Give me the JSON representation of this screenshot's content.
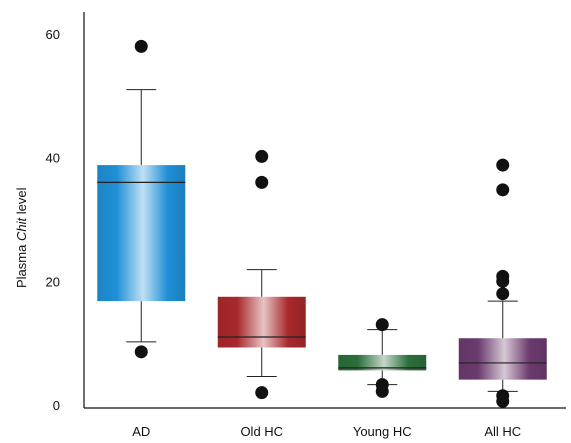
{
  "chart_data": {
    "type": "box",
    "ylabel": {
      "prefix": "Plasma",
      "italic": "Chit",
      "suffix": "level"
    },
    "ylim": [
      0,
      60
    ],
    "yticks": [
      0,
      20,
      40,
      60
    ],
    "grid": false,
    "categories": [
      "AD",
      "Old HC",
      "Young HC",
      "All HC"
    ],
    "series": [
      {
        "category": "AD",
        "color": "#1f8fd6",
        "whisker_low": 10.2,
        "q1": 16.8,
        "median": 36.0,
        "q3": 38.8,
        "whisker_high": 51.0,
        "outliers": [
          8.6,
          58.0
        ]
      },
      {
        "category": "Old HC",
        "color": "#a8282c",
        "whisker_low": 4.6,
        "q1": 9.3,
        "median": 11.0,
        "q3": 17.5,
        "whisker_high": 21.9,
        "outliers": [
          2.0,
          36.0,
          40.2
        ]
      },
      {
        "category": "Young HC",
        "color": "#2c6e3a",
        "whisker_low": 3.3,
        "q1": 5.6,
        "median": 6.0,
        "q3": 8.1,
        "whisker_high": 12.2,
        "outliers": [
          2.2,
          3.3,
          13.0
        ]
      },
      {
        "category": "All HC",
        "color": "#6b3b6e",
        "whisker_low": 2.2,
        "q1": 4.1,
        "median": 6.8,
        "q3": 10.8,
        "whisker_high": 16.8,
        "outliers": [
          0.6,
          1.5,
          18.0,
          20.0,
          20.8,
          34.8,
          38.8
        ]
      }
    ]
  }
}
